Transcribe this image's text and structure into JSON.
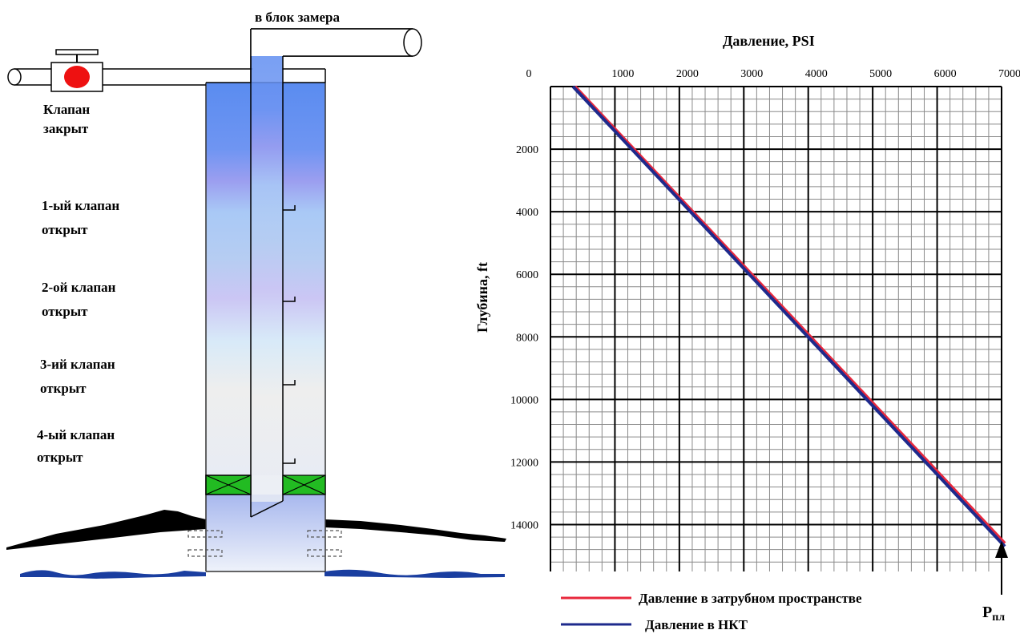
{
  "well": {
    "outlet_label": "в блок замера",
    "surface_valve_label": [
      "Клапан",
      "закрыт"
    ],
    "valves": [
      {
        "line1": "1-ый клапан",
        "line2": "открыт"
      },
      {
        "line1": "2-ой клапан",
        "line2": "открыт"
      },
      {
        "line1": "3-ий клапан",
        "line2": "открыт"
      },
      {
        "line1": "4-ый клапан",
        "line2": "открыт"
      }
    ]
  },
  "colors": {
    "annulus_line": "#e8283c",
    "tubing_line": "#1e2a8c",
    "valve_red": "#ee1111",
    "packer_green": "#22bb22",
    "ground": "#000000",
    "water": "#1a3ea0"
  },
  "chart_data": {
    "type": "line",
    "title": "Давление, PSI",
    "xlabel": "",
    "ylabel": "Глубина, ft",
    "xlim": [
      0,
      7000
    ],
    "ylim": [
      15500,
      0
    ],
    "x_ticks": [
      "0",
      "1000",
      "2000",
      "3000",
      "4000",
      "5000",
      "6000",
      "7000"
    ],
    "y_ticks": [
      "2000",
      "4000",
      "6000",
      "8000",
      "10000",
      "12000",
      "14000"
    ],
    "grid": true,
    "legend_position": "bottom-left",
    "series": [
      {
        "name": "Давление в затрубном пространстве",
        "color": "#e8283c",
        "points": [
          [
            380,
            0
          ],
          [
            7050,
            14600
          ]
        ]
      },
      {
        "name": "Давление в НКТ",
        "color": "#1e2a8c",
        "points": [
          [
            350,
            0
          ],
          [
            7050,
            14700
          ]
        ]
      }
    ],
    "annotation": {
      "text": "P",
      "subscript": "пл"
    }
  }
}
